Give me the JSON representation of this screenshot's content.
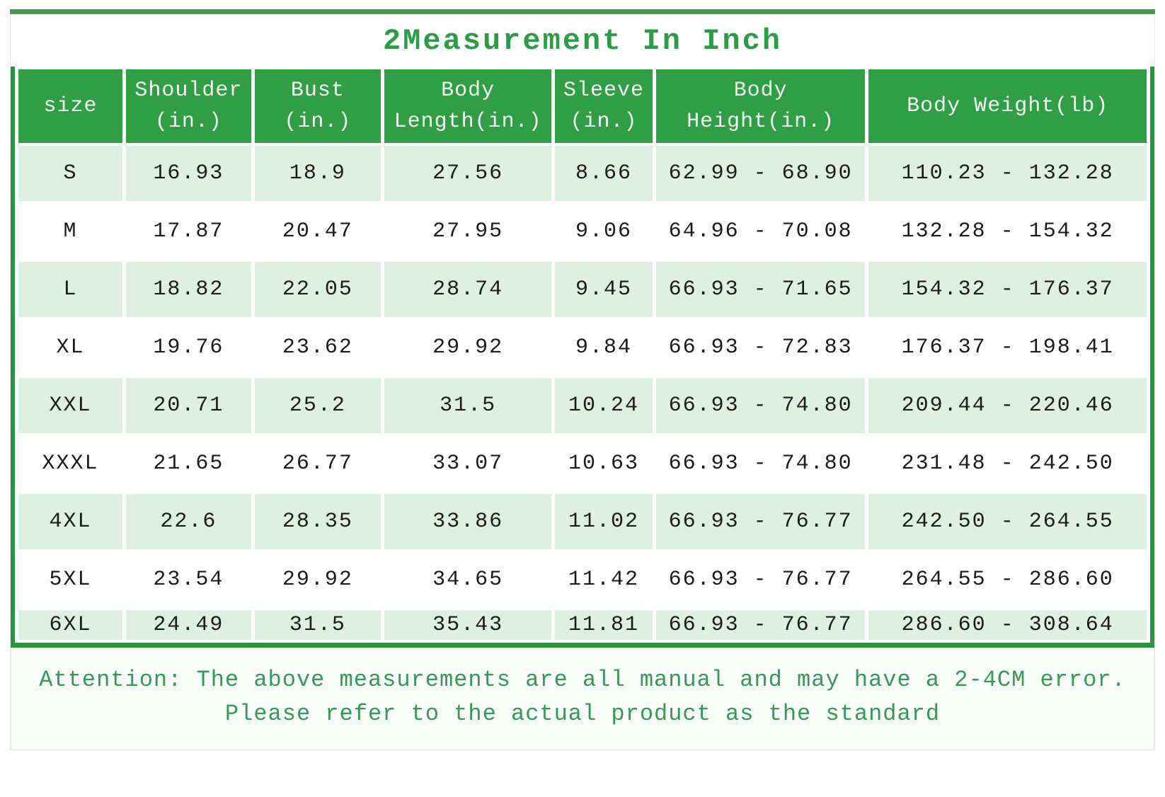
{
  "title": "2Measurement In Inch",
  "colors": {
    "header_green": "#2f9e44",
    "border_green": "#2c9440",
    "top_line_green": "#449a4e",
    "row_light_green": "#def0df",
    "title_green": "#2d9c46",
    "footer_text_green": "#359a55",
    "cell_text": "#1b1b1b"
  },
  "table": {
    "columns": [
      {
        "lines": [
          "size"
        ]
      },
      {
        "lines": [
          "Shoulder",
          "(in.)"
        ]
      },
      {
        "lines": [
          "Bust",
          "(in.)"
        ]
      },
      {
        "lines": [
          "Body",
          "Length(in.)"
        ]
      },
      {
        "lines": [
          "Sleeve",
          "(in.)"
        ]
      },
      {
        "lines": [
          "Body",
          "Height(in.)"
        ]
      },
      {
        "lines": [
          "Body Weight(lb)"
        ]
      }
    ],
    "rows": [
      {
        "size": "S",
        "cells": [
          "16.93",
          "18.9",
          "27.56",
          "8.66",
          "62.99 - 68.90",
          "110.23 - 132.28"
        ]
      },
      {
        "size": "M",
        "cells": [
          "17.87",
          "20.47",
          "27.95",
          "9.06",
          "64.96 - 70.08",
          "132.28 - 154.32"
        ]
      },
      {
        "size": "L",
        "cells": [
          "18.82",
          "22.05",
          "28.74",
          "9.45",
          "66.93 - 71.65",
          "154.32 - 176.37"
        ]
      },
      {
        "size": "XL",
        "cells": [
          "19.76",
          "23.62",
          "29.92",
          "9.84",
          "66.93 - 72.83",
          "176.37 - 198.41"
        ]
      },
      {
        "size": "XXL",
        "cells": [
          "20.71",
          "25.2",
          "31.5",
          "10.24",
          "66.93 - 74.80",
          "209.44 - 220.46"
        ]
      },
      {
        "size": "XXXL",
        "cells": [
          "21.65",
          "26.77",
          "33.07",
          "10.63",
          "66.93 - 74.80",
          "231.48 - 242.50"
        ]
      },
      {
        "size": "4XL",
        "cells": [
          "22.6",
          "28.35",
          "33.86",
          "11.02",
          "66.93 - 76.77",
          "242.50 - 264.55"
        ]
      },
      {
        "size": "5XL",
        "cells": [
          "23.54",
          "29.92",
          "34.65",
          "11.42",
          "66.93 - 76.77",
          "264.55 - 286.60"
        ]
      },
      {
        "size": "6XL",
        "cells": [
          "24.49",
          "31.5",
          "35.43",
          "11.81",
          "66.93 - 76.77",
          "286.60 - 308.64"
        ]
      }
    ]
  },
  "footer": {
    "lines": [
      "Attention: The above measurements are all manual and may have a 2-4CM error.",
      "Please refer to the actual product as the standard"
    ]
  }
}
